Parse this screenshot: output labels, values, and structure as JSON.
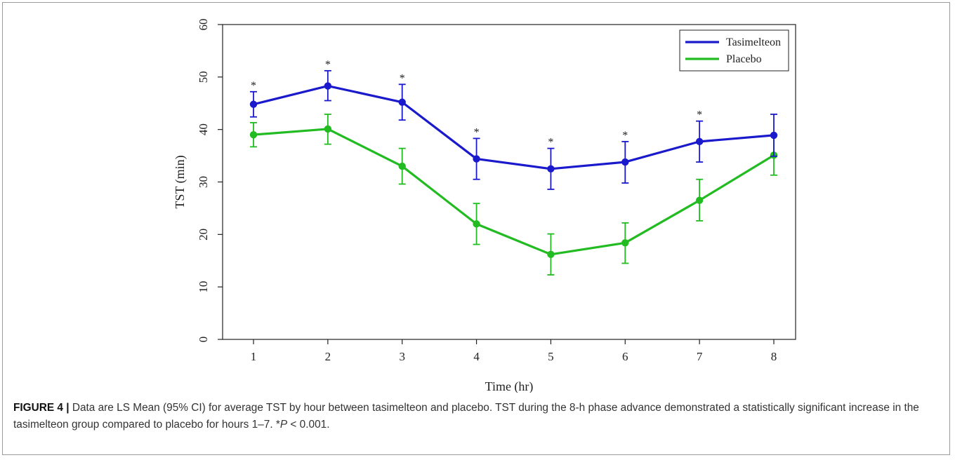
{
  "chart_data": {
    "type": "line",
    "xlabel": "Time (hr)",
    "ylabel": "TST (min)",
    "xlim": [
      1,
      8
    ],
    "ylim": [
      0,
      60
    ],
    "x": [
      1,
      2,
      3,
      4,
      5,
      6,
      7,
      8
    ],
    "xticks": [
      "1",
      "2",
      "3",
      "4",
      "5",
      "6",
      "7",
      "8"
    ],
    "yticks": [
      "0",
      "10",
      "20",
      "30",
      "40",
      "50",
      "60"
    ],
    "grid": false,
    "legend_position": "top-right",
    "significance_marker": "*",
    "series": [
      {
        "name": "Tasimelteon",
        "color": "#1a1acc",
        "values": [
          44.8,
          48.3,
          45.2,
          34.4,
          32.5,
          33.8,
          37.7,
          38.9
        ],
        "ci_lower": [
          42.4,
          45.5,
          41.8,
          30.5,
          28.6,
          29.8,
          33.8,
          34.9
        ],
        "ci_upper": [
          47.2,
          51.2,
          48.6,
          38.3,
          36.4,
          37.7,
          41.6,
          42.9
        ],
        "significant": [
          true,
          true,
          true,
          true,
          true,
          true,
          true,
          false
        ]
      },
      {
        "name": "Placebo",
        "color": "#22bb22",
        "values": [
          39.0,
          40.1,
          33.0,
          22.0,
          16.2,
          18.4,
          26.5,
          35.1
        ],
        "ci_lower": [
          36.7,
          37.2,
          29.6,
          18.1,
          12.3,
          14.5,
          22.6,
          31.3
        ],
        "ci_upper": [
          41.3,
          42.9,
          36.4,
          25.9,
          20.1,
          22.2,
          30.5,
          38.9
        ],
        "significant": [
          false,
          false,
          false,
          false,
          false,
          false,
          false,
          false
        ]
      }
    ]
  },
  "caption": {
    "label": "FIGURE 4 |",
    "text_1": " Data are LS Mean (95% CI) for average TST by hour between tasimelteon and placebo. TST during the 8-h phase advance demonstrated a statistically significant increase in the tasimelteon group compared to placebo for hours 1–7. *",
    "p_symbol": "P",
    "text_2": " < 0.001."
  }
}
